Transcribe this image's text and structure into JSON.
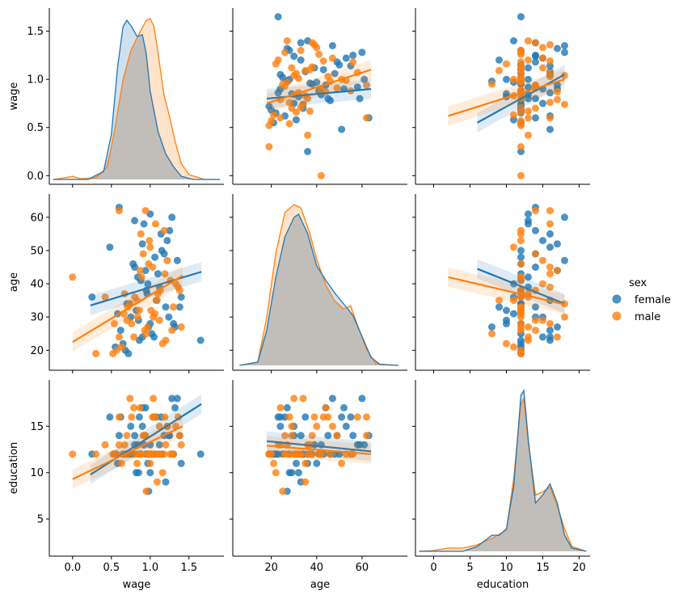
{
  "chart_data": {
    "type": "scatter",
    "title": "",
    "variables": [
      "wage",
      "age",
      "education"
    ],
    "axis_labels": {
      "wage": "wage",
      "age": "age",
      "education": "education"
    },
    "axis_ranges": {
      "wage": [
        -0.3,
        1.95
      ],
      "age": [
        3,
        80
      ],
      "education": [
        -2.5,
        21.5
      ]
    },
    "y_ranges": {
      "wage": [
        -0.09,
        1.74
      ],
      "age": [
        14,
        67
      ],
      "education": [
        1,
        20
      ]
    },
    "ticks": {
      "wage": [
        0.0,
        0.5,
        1.0,
        1.5
      ],
      "age": [
        20,
        40,
        60
      ],
      "education": [
        0,
        5,
        10,
        15,
        20
      ],
      "wage_y": [
        0.0,
        0.5,
        1.0,
        1.5
      ],
      "age_y": [
        20,
        30,
        40,
        50,
        60
      ],
      "education_y": [
        5,
        10,
        15
      ]
    },
    "tick_labels": {
      "wage": [
        "0.0",
        "0.5",
        "1.0",
        "1.5"
      ],
      "age": [
        "20",
        "40",
        "60"
      ],
      "education": [
        "0",
        "5",
        "10",
        "15",
        "20"
      ],
      "wage_y": [
        "0.0",
        "0.5",
        "1.0",
        "1.5"
      ],
      "age_y": [
        "20",
        "30",
        "40",
        "50",
        "60"
      ],
      "education_y": [
        "5",
        "10",
        "15"
      ]
    },
    "legend": {
      "title": "sex",
      "entries": [
        "female",
        "male"
      ],
      "placement": "right"
    },
    "colors": {
      "female": "#1f77b4",
      "male": "#ff7f0e",
      "overlap": "#c0bdb8"
    },
    "regression": {
      "female": {
        "age_on_wage": [
          [
            0.23,
            33.5
          ],
          [
            1.66,
            43.6
          ]
        ],
        "education_on_wage": [
          [
            0.23,
            9.8
          ],
          [
            1.66,
            17.4
          ]
        ],
        "wage_on_age": [
          [
            18,
            0.8
          ],
          [
            64,
            0.9
          ]
        ],
        "education_on_age": [
          [
            18,
            13.4
          ],
          [
            64,
            12.3
          ]
        ],
        "wage_on_education": [
          [
            6,
            0.55
          ],
          [
            18,
            1.05
          ]
        ],
        "age_on_education": [
          [
            6,
            44.5
          ],
          [
            18,
            34.0
          ]
        ]
      },
      "male": {
        "age_on_wage": [
          [
            0.0,
            22.5
          ],
          [
            1.42,
            42.5
          ]
        ],
        "education_on_wage": [
          [
            0.0,
            9.3
          ],
          [
            1.42,
            15.0
          ]
        ],
        "wage_on_age": [
          [
            18,
            0.75
          ],
          [
            64,
            1.1
          ]
        ],
        "education_on_age": [
          [
            18,
            12.9
          ],
          [
            64,
            12.0
          ]
        ],
        "wage_on_education": [
          [
            2,
            0.62
          ],
          [
            18,
            1.0
          ]
        ],
        "age_on_education": [
          [
            2,
            42.0
          ],
          [
            18,
            33.8
          ]
        ]
      }
    },
    "kde": {
      "wage": {
        "female": [
          [
            -0.25,
            0
          ],
          [
            0.2,
            0
          ],
          [
            0.4,
            0.05
          ],
          [
            0.5,
            0.28
          ],
          [
            0.58,
            0.7
          ],
          [
            0.65,
            0.95
          ],
          [
            0.7,
            0.99
          ],
          [
            0.76,
            0.95
          ],
          [
            0.83,
            0.89
          ],
          [
            0.9,
            0.9
          ],
          [
            0.95,
            0.78
          ],
          [
            1.0,
            0.55
          ],
          [
            1.1,
            0.3
          ],
          [
            1.2,
            0.16
          ],
          [
            1.3,
            0.08
          ],
          [
            1.4,
            0.02
          ],
          [
            1.55,
            0
          ],
          [
            1.9,
            0
          ]
        ],
        "male": [
          [
            -0.25,
            0
          ],
          [
            -0.1,
            0.01
          ],
          [
            0.0,
            0.02
          ],
          [
            0.1,
            0.005
          ],
          [
            0.3,
            0.01
          ],
          [
            0.45,
            0.08
          ],
          [
            0.55,
            0.33
          ],
          [
            0.65,
            0.62
          ],
          [
            0.75,
            0.8
          ],
          [
            0.85,
            0.9
          ],
          [
            0.95,
            0.99
          ],
          [
            1.0,
            1.0
          ],
          [
            1.05,
            0.95
          ],
          [
            1.1,
            0.79
          ],
          [
            1.18,
            0.52
          ],
          [
            1.25,
            0.39
          ],
          [
            1.32,
            0.24
          ],
          [
            1.4,
            0.1
          ],
          [
            1.5,
            0.03
          ],
          [
            1.7,
            0
          ],
          [
            1.9,
            0
          ]
        ]
      },
      "age": {
        "female": [
          [
            6,
            0
          ],
          [
            14,
            0.02
          ],
          [
            18,
            0.22
          ],
          [
            22,
            0.55
          ],
          [
            26,
            0.8
          ],
          [
            30,
            0.92
          ],
          [
            32,
            0.94
          ],
          [
            36,
            0.82
          ],
          [
            40,
            0.62
          ],
          [
            44,
            0.53
          ],
          [
            48,
            0.45
          ],
          [
            52,
            0.38
          ],
          [
            56,
            0.31
          ],
          [
            60,
            0.18
          ],
          [
            64,
            0.05
          ],
          [
            68,
            0.005
          ],
          [
            76,
            0
          ]
        ],
        "male": [
          [
            6,
            0
          ],
          [
            14,
            0.02
          ],
          [
            18,
            0.3
          ],
          [
            22,
            0.7
          ],
          [
            26,
            0.95
          ],
          [
            30,
            1.0
          ],
          [
            33,
            0.98
          ],
          [
            37,
            0.82
          ],
          [
            40,
            0.66
          ],
          [
            44,
            0.5
          ],
          [
            48,
            0.4
          ],
          [
            52,
            0.35
          ],
          [
            55,
            0.37
          ],
          [
            58,
            0.25
          ],
          [
            62,
            0.1
          ],
          [
            66,
            0.01
          ],
          [
            76,
            0
          ]
        ]
      },
      "education": {
        "female": [
          [
            -2,
            0
          ],
          [
            4,
            0
          ],
          [
            6,
            0.03
          ],
          [
            8,
            0.1
          ],
          [
            9,
            0.1
          ],
          [
            10,
            0.14
          ],
          [
            11,
            0.4
          ],
          [
            12,
            0.97
          ],
          [
            12.4,
            1.0
          ],
          [
            13,
            0.7
          ],
          [
            14,
            0.3
          ],
          [
            15,
            0.35
          ],
          [
            16,
            0.42
          ],
          [
            17,
            0.3
          ],
          [
            18,
            0.1
          ],
          [
            19,
            0.02
          ],
          [
            21,
            0
          ]
        ],
        "male": [
          [
            -2,
            0
          ],
          [
            0,
            0.005
          ],
          [
            2,
            0.02
          ],
          [
            4,
            0.02
          ],
          [
            6,
            0.04
          ],
          [
            8,
            0.08
          ],
          [
            10,
            0.13
          ],
          [
            11,
            0.45
          ],
          [
            12,
            0.92
          ],
          [
            12.4,
            0.95
          ],
          [
            13,
            0.68
          ],
          [
            14,
            0.35
          ],
          [
            15,
            0.37
          ],
          [
            16,
            0.4
          ],
          [
            17,
            0.28
          ],
          [
            18,
            0.14
          ],
          [
            19,
            0.03
          ],
          [
            21,
            0
          ]
        ]
      }
    },
    "series": [
      {
        "name": "female",
        "wage": [
          0.55,
          0.62,
          0.7,
          0.8,
          0.85,
          0.9,
          0.95,
          1.0,
          1.05,
          1.1,
          1.2,
          1.25,
          1.3,
          1.35,
          1.4,
          0.65,
          0.75,
          0.88,
          0.92,
          0.98,
          1.08,
          1.15,
          0.6,
          0.72,
          0.82,
          0.94,
          1.02,
          1.12,
          1.22,
          0.58,
          0.78,
          0.86,
          0.96,
          1.18,
          1.28,
          0.68,
          0.84,
          1.0,
          1.14,
          0.74,
          0.9,
          1.06,
          1.24,
          0.8,
          0.97,
          1.32,
          0.25,
          1.65,
          0.48,
          1.38
        ],
        "age": [
          21,
          26,
          34,
          45,
          29,
          52,
          38,
          61,
          24,
          43,
          33,
          56,
          28,
          47,
          36,
          22,
          30,
          41,
          58,
          27,
          35,
          50,
          63,
          19,
          32,
          44,
          25,
          39,
          53,
          31,
          46,
          23,
          37,
          49,
          60,
          20,
          42,
          28,
          55,
          34,
          24,
          48,
          30,
          59,
          40,
          27,
          36,
          23,
          51,
          33
        ],
        "education": [
          12,
          16,
          12,
          14,
          10,
          17,
          12,
          13,
          16,
          12,
          9,
          14,
          12,
          18,
          11,
          12,
          15,
          12,
          13,
          8,
          16,
          12,
          14,
          12,
          10,
          17,
          12,
          13,
          15,
          11,
          12,
          16,
          12,
          14,
          18,
          12,
          13,
          10,
          16,
          12,
          15,
          12,
          14,
          13,
          11,
          17,
          12,
          12,
          16,
          14
        ]
      },
      {
        "name": "male",
        "wage": [
          0.52,
          0.6,
          0.66,
          0.76,
          0.83,
          0.89,
          0.93,
          0.99,
          1.04,
          1.1,
          1.16,
          1.22,
          1.3,
          1.36,
          1.4,
          0.57,
          0.7,
          0.8,
          0.87,
          0.95,
          1.01,
          1.07,
          1.13,
          1.2,
          1.26,
          0.63,
          0.74,
          0.84,
          0.91,
          0.97,
          1.03,
          1.09,
          1.18,
          1.33,
          0.54,
          0.67,
          0.79,
          0.86,
          0.94,
          1.06,
          1.19,
          1.28,
          0.3,
          0.0,
          0.42,
          1.0,
          0.71,
          1.12,
          0.88,
          1.38,
          0.6,
          0.98
        ],
        "age": [
          19,
          24,
          31,
          28,
          35,
          42,
          26,
          53,
          30,
          37,
          22,
          47,
          33,
          39,
          27,
          20,
          29,
          36,
          44,
          25,
          32,
          58,
          38,
          23,
          41,
          21,
          34,
          30,
          49,
          27,
          45,
          35,
          56,
          40,
          28,
          37,
          24,
          32,
          62,
          31,
          43,
          26,
          19,
          42,
          36,
          51,
          33,
          29,
          55,
          38,
          62,
          46
        ],
        "education": [
          12,
          13,
          12,
          16,
          11,
          12,
          14,
          12,
          18,
          12,
          10,
          15,
          12,
          16,
          13,
          12,
          14,
          12,
          17,
          8,
          12,
          16,
          12,
          13,
          12,
          11,
          18,
          12,
          14,
          12,
          16,
          9,
          12,
          15,
          12,
          13,
          17,
          12,
          14,
          12,
          16,
          12,
          12,
          12,
          13,
          11,
          12,
          15,
          12,
          14,
          16,
          12
        ]
      }
    ]
  }
}
